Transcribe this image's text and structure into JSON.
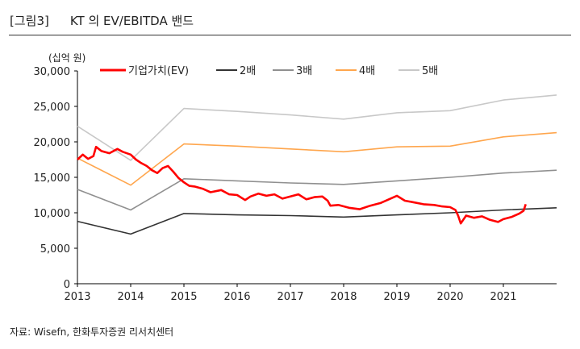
{
  "header": {
    "figure_label": "[그림3]",
    "title": "KT 의 EV/EBITDA 밴드"
  },
  "source": "자료: Wisefn, 한화투자증권 리서치센터",
  "chart_data": {
    "type": "line",
    "title": "KT 의 EV/EBITDA 밴드",
    "unit_label": "(십억 원)",
    "xlabel": "",
    "ylabel": "",
    "xlim": [
      2013,
      2022
    ],
    "ylim": [
      0,
      30000
    ],
    "x_ticks": [
      "2013",
      "2014",
      "2015",
      "2016",
      "2017",
      "2018",
      "2019",
      "2020",
      "2021"
    ],
    "y_ticks": [
      "0",
      "5,000",
      "10,000",
      "15,000",
      "20,000",
      "25,000",
      "30,000"
    ],
    "grid": false,
    "legend_placement": "top",
    "series": [
      {
        "name": "기업가치(EV)",
        "color": "#ff0000",
        "x": [
          2013.0,
          2013.1,
          2013.2,
          2013.3,
          2013.35,
          2013.45,
          2013.6,
          2013.75,
          2013.85,
          2014.0,
          2014.1,
          2014.2,
          2014.3,
          2014.4,
          2014.5,
          2014.6,
          2014.7,
          2014.8,
          2014.9,
          2015.0,
          2015.1,
          2015.2,
          2015.35,
          2015.5,
          2015.7,
          2015.85,
          2016.0,
          2016.15,
          2016.25,
          2016.4,
          2016.55,
          2016.7,
          2016.85,
          2017.0,
          2017.15,
          2017.3,
          2017.45,
          2017.6,
          2017.7,
          2017.75,
          2017.9,
          2018.1,
          2018.3,
          2018.5,
          2018.7,
          2018.85,
          2019.0,
          2019.15,
          2019.3,
          2019.5,
          2019.7,
          2019.85,
          2020.0,
          2020.1,
          2020.15,
          2020.2,
          2020.3,
          2020.45,
          2020.6,
          2020.75,
          2020.9,
          2021.0,
          2021.15,
          2021.3,
          2021.38,
          2021.42
        ],
        "y": [
          17500,
          18200,
          17600,
          18000,
          19300,
          18700,
          18400,
          19000,
          18600,
          18200,
          17500,
          17000,
          16600,
          16000,
          15600,
          16300,
          16600,
          15800,
          14900,
          14300,
          13800,
          13700,
          13400,
          12900,
          13200,
          12600,
          12500,
          11800,
          12300,
          12700,
          12400,
          12600,
          12000,
          12300,
          12600,
          11900,
          12200,
          12300,
          11700,
          11000,
          11100,
          10700,
          10500,
          11000,
          11400,
          11900,
          12400,
          11700,
          11500,
          11200,
          11100,
          10900,
          10800,
          10400,
          9600,
          8500,
          9600,
          9300,
          9500,
          9000,
          8700,
          9100,
          9400,
          9900,
          10300,
          11200
        ]
      },
      {
        "name": "2배",
        "color": "#333333",
        "x": [
          2013,
          2014,
          2015,
          2016,
          2017,
          2018,
          2019,
          2020,
          2021,
          2022
        ],
        "y": [
          8800,
          7000,
          9900,
          9700,
          9600,
          9400,
          9700,
          10000,
          10400,
          10700
        ]
      },
      {
        "name": "3배",
        "color": "#909090",
        "x": [
          2013,
          2014,
          2015,
          2016,
          2017,
          2018,
          2019,
          2020,
          2021,
          2022
        ],
        "y": [
          13300,
          10400,
          14800,
          14500,
          14200,
          14000,
          14500,
          15000,
          15600,
          16000
        ]
      },
      {
        "name": "4배",
        "color": "#ffa64d",
        "x": [
          2013,
          2014,
          2015,
          2016,
          2017,
          2018,
          2019,
          2020,
          2021,
          2022
        ],
        "y": [
          17700,
          13900,
          19700,
          19400,
          19000,
          18600,
          19300,
          19400,
          20700,
          21300
        ]
      },
      {
        "name": "5배",
        "color": "#c8c8c8",
        "x": [
          2013,
          2014,
          2015,
          2016,
          2017,
          2018,
          2019,
          2020,
          2021,
          2022
        ],
        "y": [
          22200,
          17400,
          24700,
          24300,
          23800,
          23200,
          24100,
          24400,
          25900,
          26600
        ]
      }
    ]
  }
}
